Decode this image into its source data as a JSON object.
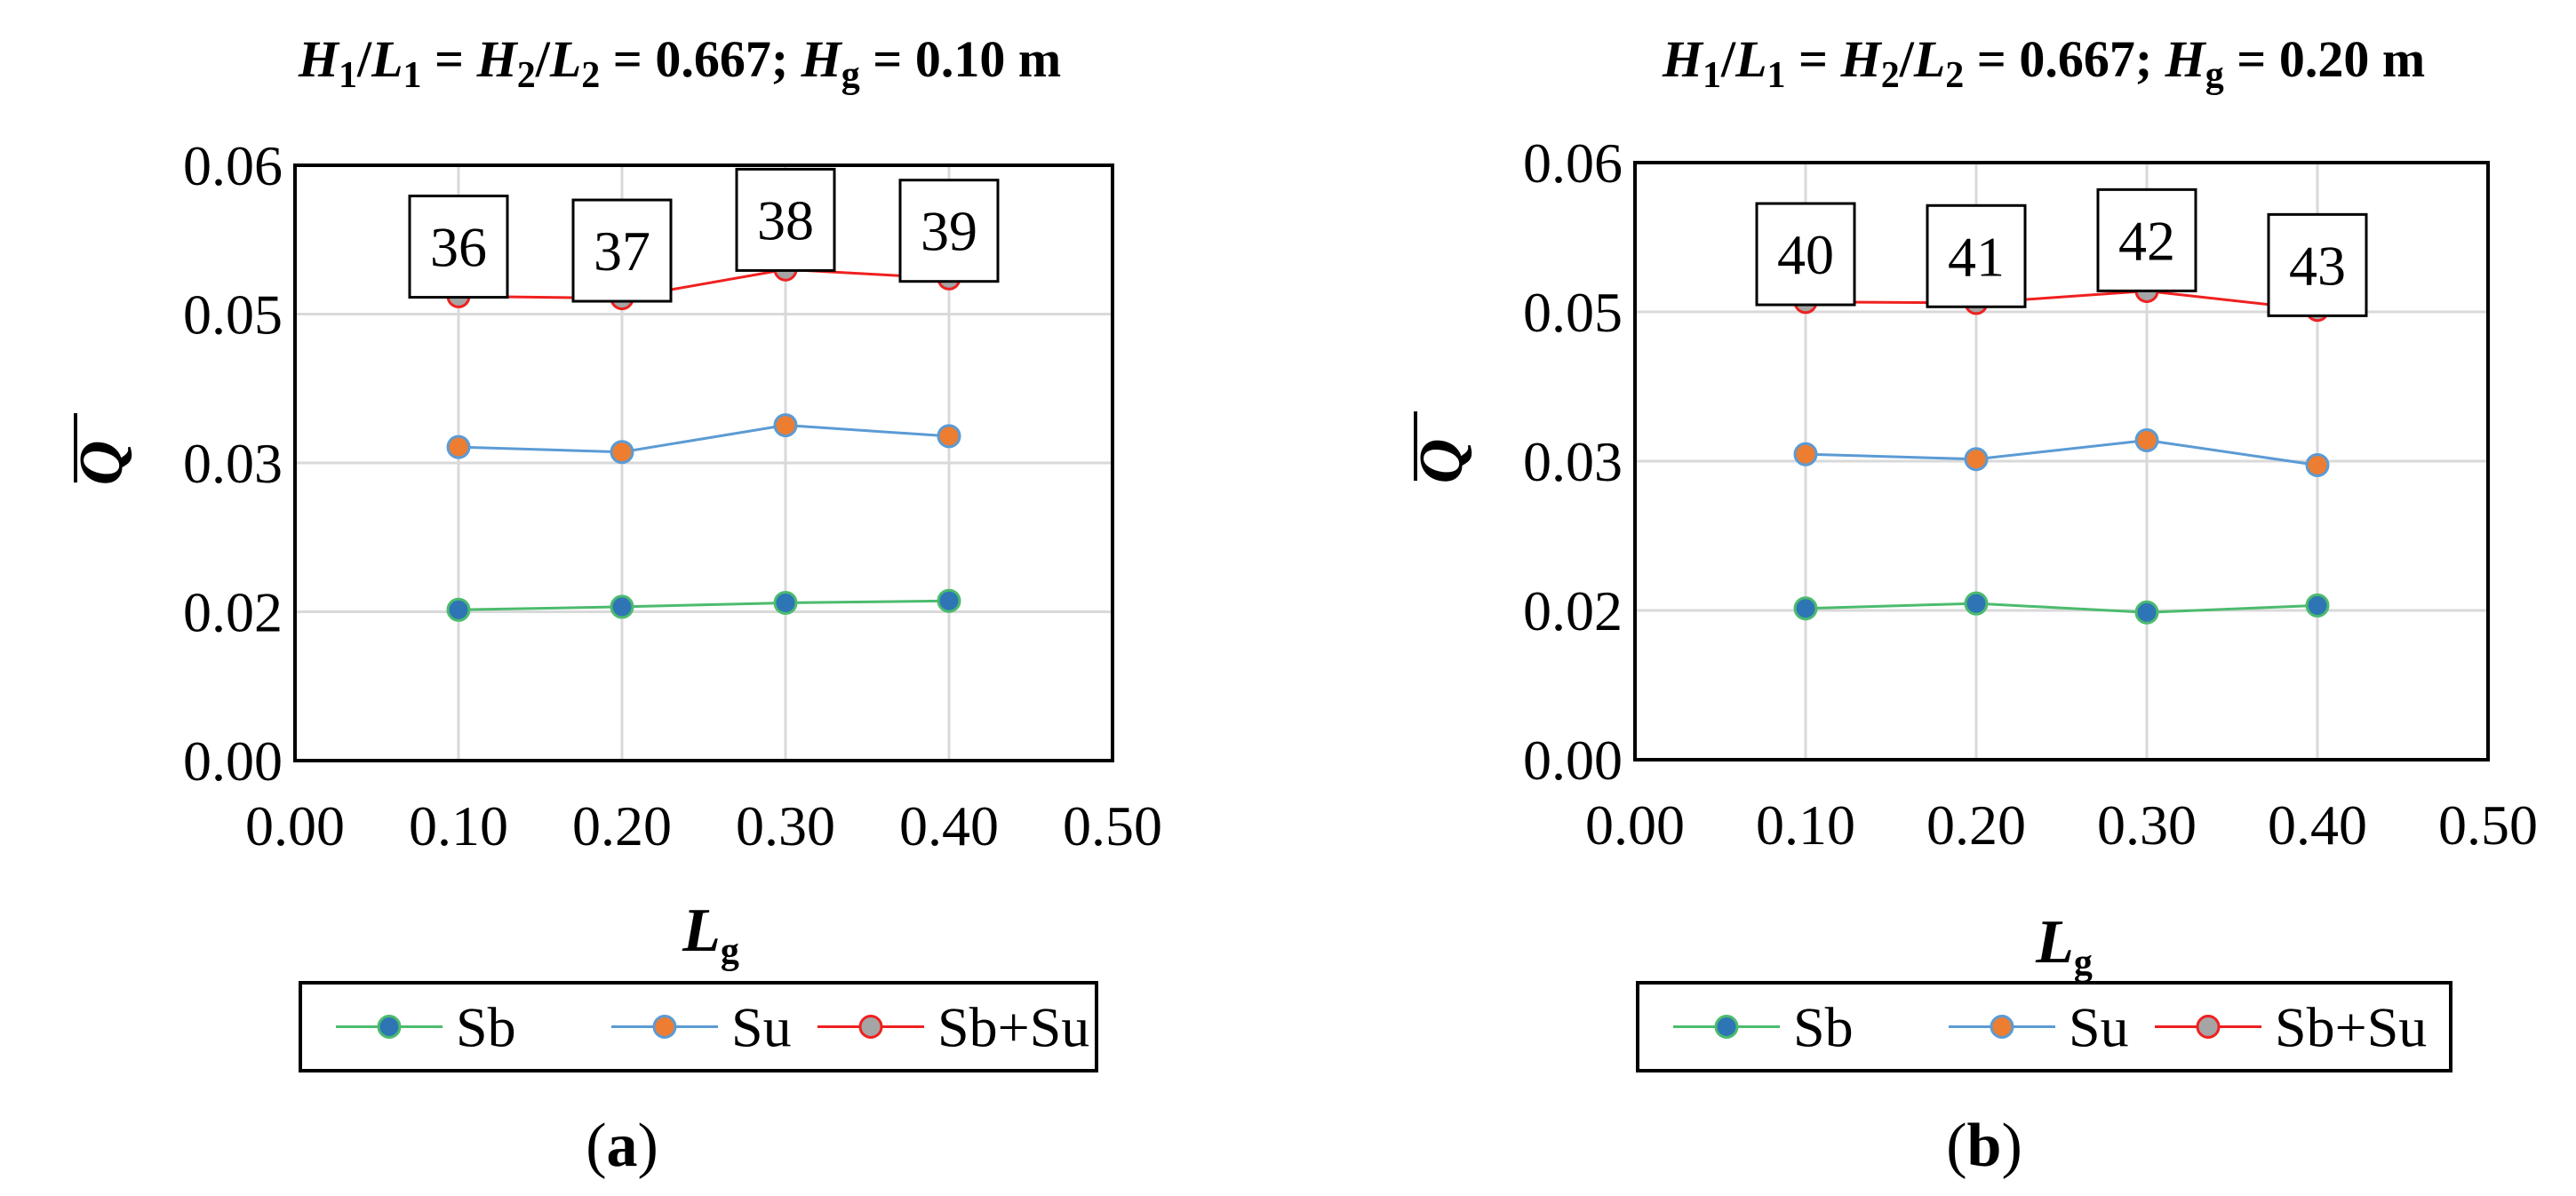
{
  "chart_data": [
    {
      "type": "line",
      "panel_label": "a",
      "title": {
        "prefix_h1": "H",
        "h1_sub": "1",
        "slash1": "/",
        "l1": "L",
        "l1_sub": "1",
        "eq1": " = ",
        "h2": "H",
        "h2_sub": "2",
        "slash2": "/",
        "l2": "L",
        "l2_sub": "2",
        "ratio": " = 0.667; ",
        "hg": "H",
        "hg_sub": "g",
        "hg_value": " = 0.10 m"
      },
      "xlabel": "L",
      "xlabel_sub": "g",
      "ylabel": "Q",
      "xlim": [
        0,
        0.5
      ],
      "ylim": [
        0,
        0.06
      ],
      "x_ticks": [
        "0.00",
        "0.10",
        "0.20",
        "0.30",
        "0.40",
        "0.50"
      ],
      "y_ticks": [
        "0.00",
        "0.02",
        "0.03",
        "0.05",
        "0.06"
      ],
      "grid": true,
      "x": [
        0.1,
        0.2,
        0.3,
        0.4
      ],
      "series": [
        {
          "name": "Sb",
          "values": [
            0.0152,
            0.0155,
            0.0159,
            0.0161
          ],
          "line_color": "#4CBB6E",
          "marker_color": "#2E75B6"
        },
        {
          "name": "Su",
          "values": [
            0.0316,
            0.0311,
            0.0338,
            0.0327
          ],
          "line_color": "#5B9BD5",
          "marker_color": "#ED7D31"
        },
        {
          "name": "Sb+Su",
          "values": [
            0.0468,
            0.0466,
            0.0495,
            0.0486
          ],
          "line_color": "#F02020",
          "marker_color": "#A5A5A5"
        }
      ],
      "annotations": [
        {
          "label": "36",
          "x": 0.1,
          "y": 0.0518
        },
        {
          "label": "37",
          "x": 0.2,
          "y": 0.0514
        },
        {
          "label": "38",
          "x": 0.3,
          "y": 0.0545
        },
        {
          "label": "39",
          "x": 0.4,
          "y": 0.0534
        }
      ],
      "legend": [
        "Sb",
        "Su",
        "Sb+Su"
      ]
    },
    {
      "type": "line",
      "panel_label": "b",
      "title": {
        "prefix_h1": "H",
        "h1_sub": "1",
        "slash1": "/",
        "l1": "L",
        "l1_sub": "1",
        "eq1": " = ",
        "h2": "H",
        "h2_sub": "2",
        "slash2": "/",
        "l2": "L",
        "l2_sub": "2",
        "ratio": " = 0.667; ",
        "hg": "H",
        "hg_sub": "g",
        "hg_value": " = 0.20 m"
      },
      "xlabel": "L",
      "xlabel_sub": "g",
      "ylabel": "Q",
      "xlim": [
        0,
        0.5
      ],
      "ylim": [
        0,
        0.06
      ],
      "x_ticks": [
        "0.00",
        "0.10",
        "0.20",
        "0.30",
        "0.40",
        "0.50"
      ],
      "y_ticks": [
        "0.00",
        "0.02",
        "0.03",
        "0.05",
        "0.06"
      ],
      "grid": true,
      "x": [
        0.1,
        0.2,
        0.3,
        0.4
      ],
      "series": [
        {
          "name": "Sb",
          "values": [
            0.0152,
            0.0157,
            0.0148,
            0.0155
          ],
          "line_color": "#4CBB6E",
          "marker_color": "#2E75B6"
        },
        {
          "name": "Su",
          "values": [
            0.0307,
            0.0302,
            0.0321,
            0.0296
          ],
          "line_color": "#5B9BD5",
          "marker_color": "#ED7D31"
        },
        {
          "name": "Sb+Su",
          "values": [
            0.046,
            0.0459,
            0.0471,
            0.0452
          ],
          "line_color": "#F02020",
          "marker_color": "#A5A5A5"
        }
      ],
      "annotations": [
        {
          "label": "40",
          "x": 0.1,
          "y": 0.0508
        },
        {
          "label": "41",
          "x": 0.2,
          "y": 0.0506
        },
        {
          "label": "42",
          "x": 0.3,
          "y": 0.0522
        },
        {
          "label": "43",
          "x": 0.4,
          "y": 0.0497
        }
      ],
      "legend": [
        "Sb",
        "Su",
        "Sb+Su"
      ]
    }
  ]
}
